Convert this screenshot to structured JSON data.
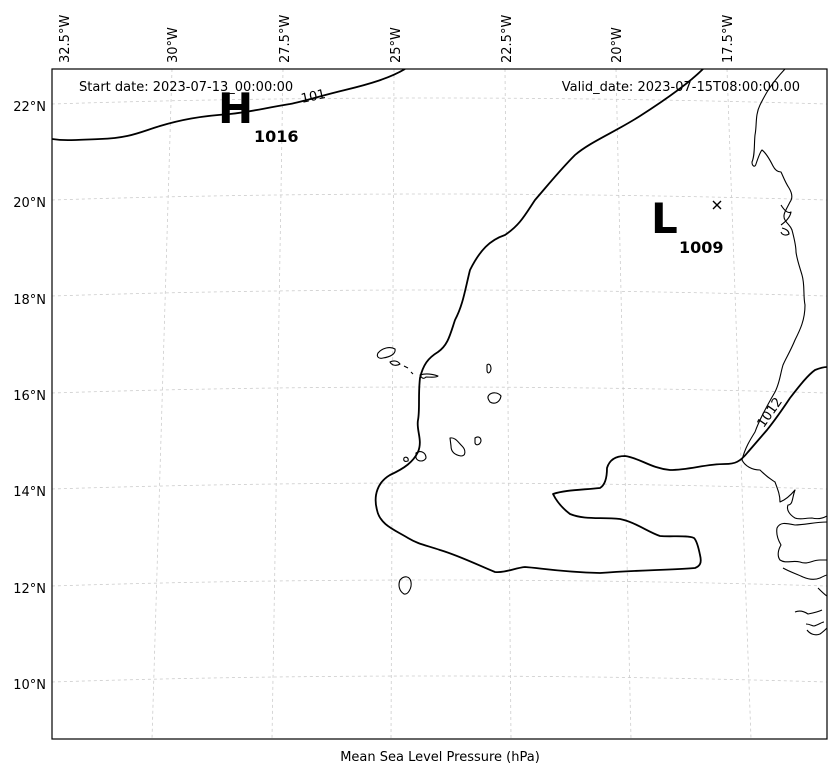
{
  "map": {
    "title": "Mean Sea Level Pressure (hPa)",
    "start_date": "Start date: 2023-07-13_00:00:00",
    "valid_date": "Valid_date: 2023-07-15T08:00:00.00",
    "longitude_labels": [
      "32.5°W",
      "30°W",
      "27.5°W",
      "25°W",
      "22.5°W",
      "20°W",
      "17.5°W"
    ],
    "latitude_labels": [
      "22°N",
      "20°N",
      "18°N",
      "16°N",
      "14°N",
      "12°N",
      "10°N"
    ],
    "pressure_centers": [
      {
        "type": "H",
        "value": "1016"
      },
      {
        "type": "L",
        "value": "1009"
      }
    ],
    "contour_labels": [
      "1012",
      "101"
    ],
    "gridlines": true
  }
}
